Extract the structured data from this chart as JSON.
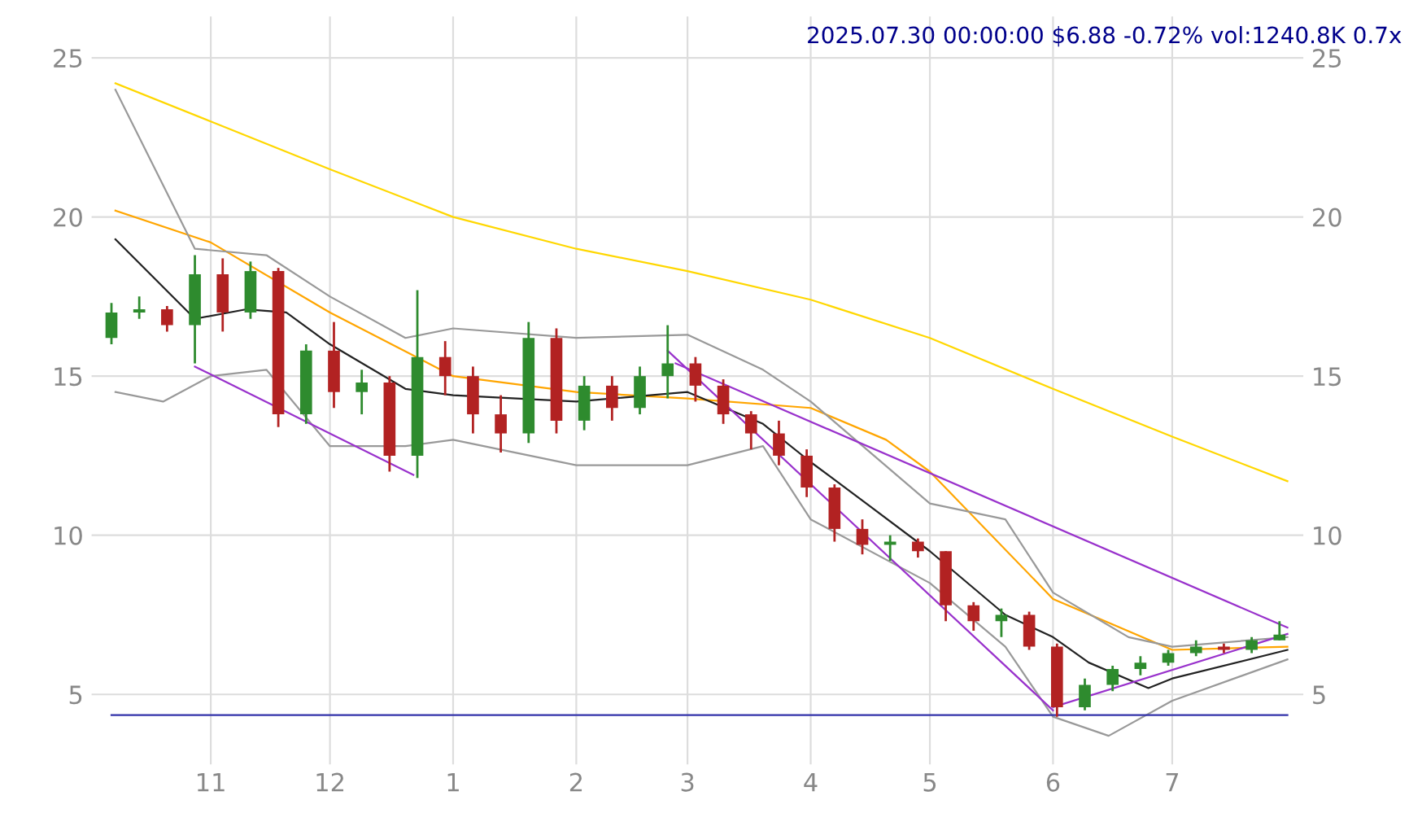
{
  "chart_data": {
    "type": "candlestick",
    "title": "2025.07.30 00:00:00 $6.88 -0.72% vol:1240.8K 0.7x",
    "x": [
      "2024-10-07",
      "2024-10-14",
      "2024-10-21",
      "2024-10-28",
      "2024-11-04",
      "2024-11-11",
      "2024-11-18",
      "2024-11-25",
      "2024-12-02",
      "2024-12-09",
      "2024-12-16",
      "2024-12-23",
      "2024-12-30",
      "2025-01-06",
      "2025-01-13",
      "2025-01-20",
      "2025-01-27",
      "2025-02-03",
      "2025-02-10",
      "2025-02-17",
      "2025-02-24",
      "2025-03-03",
      "2025-03-10",
      "2025-03-17",
      "2025-03-24",
      "2025-03-31",
      "2025-04-07",
      "2025-04-14",
      "2025-04-21",
      "2025-04-28",
      "2025-05-05",
      "2025-05-12",
      "2025-05-19",
      "2025-05-26",
      "2025-06-02",
      "2025-06-09",
      "2025-06-16",
      "2025-06-23",
      "2025-06-30",
      "2025-07-07",
      "2025-07-14",
      "2025-07-21",
      "2025-07-28"
    ],
    "ohlc": [
      [
        16.2,
        17.3,
        16.0,
        17.0
      ],
      [
        17.0,
        17.5,
        16.8,
        17.1
      ],
      [
        17.1,
        17.2,
        16.4,
        16.6
      ],
      [
        16.6,
        18.8,
        15.4,
        18.2
      ],
      [
        18.2,
        18.7,
        16.4,
        17.0
      ],
      [
        17.0,
        18.6,
        16.8,
        18.3
      ],
      [
        18.3,
        18.4,
        13.4,
        13.8
      ],
      [
        13.8,
        16.0,
        13.5,
        15.8
      ],
      [
        15.8,
        16.7,
        14.0,
        14.5
      ],
      [
        14.5,
        15.2,
        13.8,
        14.8
      ],
      [
        14.8,
        15.0,
        12.0,
        12.5
      ],
      [
        12.5,
        17.7,
        11.8,
        15.6
      ],
      [
        15.6,
        16.1,
        14.4,
        15.0
      ],
      [
        15.0,
        15.3,
        13.2,
        13.8
      ],
      [
        13.8,
        14.4,
        12.6,
        13.2
      ],
      [
        13.2,
        16.7,
        12.9,
        16.2
      ],
      [
        16.2,
        16.5,
        13.2,
        13.6
      ],
      [
        13.6,
        15.0,
        13.3,
        14.7
      ],
      [
        14.7,
        15.0,
        13.6,
        14.0
      ],
      [
        14.0,
        15.3,
        13.8,
        15.0
      ],
      [
        15.0,
        16.6,
        14.3,
        15.4
      ],
      [
        15.4,
        15.6,
        14.2,
        14.7
      ],
      [
        14.7,
        14.9,
        13.5,
        13.8
      ],
      [
        13.8,
        13.9,
        12.7,
        13.2
      ],
      [
        13.2,
        13.6,
        12.2,
        12.5
      ],
      [
        12.5,
        12.7,
        11.2,
        11.5
      ],
      [
        11.5,
        11.6,
        9.8,
        10.2
      ],
      [
        10.2,
        10.5,
        9.4,
        9.7
      ],
      [
        9.7,
        10.0,
        9.2,
        9.8
      ],
      [
        9.8,
        9.9,
        9.3,
        9.5
      ],
      [
        9.5,
        9.5,
        7.3,
        7.8
      ],
      [
        7.8,
        7.9,
        7.0,
        7.3
      ],
      [
        7.3,
        7.7,
        6.8,
        7.5
      ],
      [
        7.5,
        7.6,
        6.4,
        6.5
      ],
      [
        6.5,
        6.6,
        4.3,
        4.6
      ],
      [
        4.6,
        5.5,
        4.5,
        5.3
      ],
      [
        5.3,
        5.9,
        5.1,
        5.8
      ],
      [
        5.8,
        6.2,
        5.6,
        6.0
      ],
      [
        6.0,
        6.4,
        5.9,
        6.3
      ],
      [
        6.3,
        6.7,
        6.2,
        6.5
      ],
      [
        6.5,
        6.6,
        6.3,
        6.4
      ],
      [
        6.4,
        6.8,
        6.3,
        6.7
      ],
      [
        6.7,
        7.3,
        6.7,
        6.88
      ]
    ],
    "colors": [
      "#2e8b2e",
      "#2e8b2e",
      "#b22222",
      "#2e8b2e",
      "#b22222",
      "#2e8b2e",
      "#b22222",
      "#2e8b2e",
      "#b22222",
      "#2e8b2e",
      "#b22222",
      "#2e8b2e",
      "#b22222",
      "#b22222",
      "#b22222",
      "#2e8b2e",
      "#b22222",
      "#2e8b2e",
      "#b22222",
      "#2e8b2e",
      "#2e8b2e",
      "#b22222",
      "#b22222",
      "#b22222",
      "#b22222",
      "#b22222",
      "#b22222",
      "#b22222",
      "#2e8b2e",
      "#b22222",
      "#b22222",
      "#b22222",
      "#2e8b2e",
      "#b22222",
      "#b22222",
      "#2e8b2e",
      "#2e8b2e",
      "#2e8b2e",
      "#2e8b2e",
      "#2e8b2e",
      "#b22222",
      "#2e8b2e",
      "#2e8b2e"
    ],
    "series": [
      {
        "type": "line",
        "color": "#ffd700",
        "x": [
          "2024-10-08",
          "2024-11-01",
          "2024-12-01",
          "2025-01-01",
          "2025-02-01",
          "2025-03-01",
          "2025-04-01",
          "2025-05-01",
          "2025-06-01",
          "2025-07-01",
          "2025-07-30"
        ],
        "values": [
          24.2,
          23.0,
          21.5,
          20.0,
          19.0,
          18.3,
          17.4,
          16.2,
          14.6,
          13.1,
          11.7
        ]
      },
      {
        "type": "line",
        "color": "#ffa500",
        "x": [
          "2024-10-08",
          "2024-11-01",
          "2024-12-01",
          "2025-01-01",
          "2025-02-01",
          "2025-03-01",
          "2025-04-01",
          "2025-04-20",
          "2025-05-01",
          "2025-06-01",
          "2025-07-01",
          "2025-07-30"
        ],
        "values": [
          20.2,
          19.2,
          17.0,
          15.0,
          14.5,
          14.3,
          14.0,
          13.0,
          12.0,
          8.0,
          6.4,
          6.5
        ]
      },
      {
        "type": "line",
        "color": "#222222",
        "x": [
          "2024-10-08",
          "2024-10-28",
          "2024-11-10",
          "2024-11-20",
          "2024-12-01",
          "2024-12-20",
          "2025-01-01",
          "2025-02-01",
          "2025-03-01",
          "2025-03-20",
          "2025-04-01",
          "2025-04-15",
          "2025-05-01",
          "2025-05-20",
          "2025-06-01",
          "2025-06-10",
          "2025-06-25",
          "2025-07-01",
          "2025-07-30"
        ],
        "values": [
          19.3,
          16.8,
          17.1,
          17.0,
          16.0,
          14.6,
          14.4,
          14.2,
          14.5,
          13.5,
          12.3,
          11.0,
          9.5,
          7.5,
          6.8,
          6.0,
          5.2,
          5.5,
          6.4
        ]
      },
      {
        "type": "line",
        "color": "#999999",
        "x": [
          "2024-10-08",
          "2024-10-28",
          "2024-11-15",
          "2024-12-01",
          "2024-12-20",
          "2025-01-01",
          "2025-02-01",
          "2025-03-01",
          "2025-03-20",
          "2025-04-01",
          "2025-05-01",
          "2025-05-20",
          "2025-06-01",
          "2025-06-20",
          "2025-07-01",
          "2025-07-30"
        ],
        "values": [
          24.0,
          19.0,
          18.8,
          17.5,
          16.2,
          16.5,
          16.2,
          16.3,
          15.2,
          14.2,
          11.0,
          10.5,
          8.2,
          6.8,
          6.5,
          6.8
        ]
      },
      {
        "type": "line",
        "color": "#999999",
        "x": [
          "2024-10-08",
          "2024-10-20",
          "2024-11-01",
          "2024-11-15",
          "2024-12-01",
          "2024-12-20",
          "2025-01-01",
          "2025-02-01",
          "2025-03-01",
          "2025-03-20",
          "2025-04-01",
          "2025-05-01",
          "2025-05-20",
          "2025-06-01",
          "2025-06-15",
          "2025-07-01",
          "2025-07-30"
        ],
        "values": [
          14.5,
          14.2,
          15.0,
          15.2,
          12.8,
          12.8,
          13.0,
          12.2,
          12.2,
          12.8,
          10.5,
          8.5,
          6.5,
          4.3,
          3.7,
          4.8,
          6.1
        ]
      },
      {
        "type": "line",
        "color": "#9932cc",
        "x": [
          "2024-10-28",
          "2024-12-22"
        ],
        "values": [
          15.3,
          11.9
        ]
      },
      {
        "type": "line",
        "color": "#9932cc",
        "x": [
          "2025-02-24",
          "2025-06-01"
        ],
        "values": [
          15.8,
          4.5
        ]
      },
      {
        "type": "line",
        "color": "#9932cc",
        "x": [
          "2025-02-26",
          "2025-07-30"
        ],
        "values": [
          15.4,
          7.1
        ]
      },
      {
        "type": "line",
        "color": "#9932cc",
        "x": [
          "2025-06-01",
          "2025-07-30"
        ],
        "values": [
          4.6,
          6.9
        ]
      },
      {
        "type": "line",
        "color": "#3333aa",
        "x": [
          "2024-10-07",
          "2025-07-30"
        ],
        "values": [
          4.35,
          4.35
        ]
      }
    ],
    "xlim": [
      "2024-10-02",
      "2025-08-03"
    ],
    "xticks": [
      {
        "value": "2024-11-01",
        "label": "11"
      },
      {
        "value": "2024-12-01",
        "label": "12"
      },
      {
        "value": "2025-01-01",
        "label": "1"
      },
      {
        "value": "2025-02-01",
        "label": "2"
      },
      {
        "value": "2025-03-01",
        "label": "3"
      },
      {
        "value": "2025-04-01",
        "label": "4"
      },
      {
        "value": "2025-05-01",
        "label": "5"
      },
      {
        "value": "2025-06-01",
        "label": "6"
      },
      {
        "value": "2025-07-01",
        "label": "7"
      }
    ],
    "ylim": [
      2.8,
      26.3
    ],
    "yticks": [
      5,
      10,
      15,
      20,
      25
    ],
    "y2lim": [
      2.8,
      26.3
    ],
    "y2ticks": [
      5,
      10,
      15,
      20,
      25
    ],
    "grid": true,
    "legend": false
  }
}
